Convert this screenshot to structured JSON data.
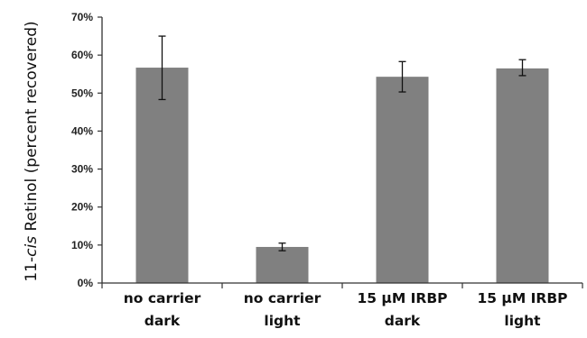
{
  "chart_data": {
    "type": "bar",
    "title": "",
    "xlabel": "",
    "ylabel": {
      "prefix": "11-",
      "italic": "cis",
      "suffix": " Retinol (percent recovered)"
    },
    "ylim": [
      0,
      70
    ],
    "ytick_values": [
      0,
      10,
      20,
      30,
      40,
      50,
      60,
      70
    ],
    "ytick_labels": [
      "0%",
      "10%",
      "20%",
      "30%",
      "40%",
      "50%",
      "60%",
      "70%"
    ],
    "categories": [
      [
        "no carrier",
        "dark"
      ],
      [
        "no carrier",
        "light"
      ],
      [
        "15 μM IRBP",
        "dark"
      ],
      [
        "15 μM IRBP",
        "light"
      ]
    ],
    "values": [
      56.7,
      9.5,
      54.3,
      56.5
    ],
    "errors": [
      [
        48.3,
        65.0
      ],
      [
        8.5,
        10.5
      ],
      [
        50.3,
        58.3
      ],
      [
        54.6,
        58.8
      ]
    ],
    "grid": false,
    "bar_color": "#808080"
  }
}
